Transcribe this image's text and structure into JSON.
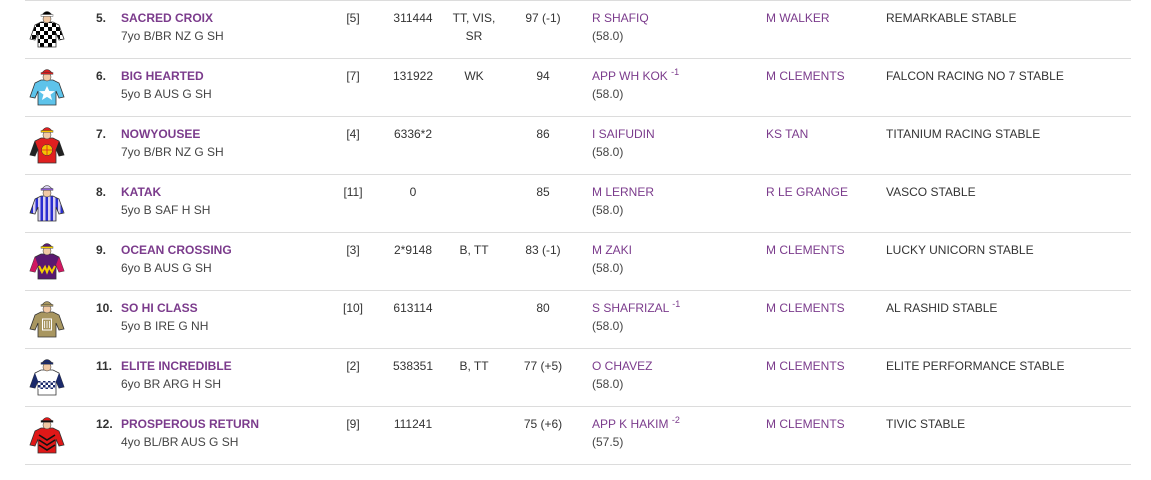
{
  "colors": {
    "link": "#7b3b8c",
    "text": "#333333",
    "divider": "#dcdcdc"
  },
  "runners": [
    {
      "number": "5.",
      "name": "SACRED CROIX",
      "desc": "7yo B/BR NZ G SH",
      "barrier": "[5]",
      "form": "311444",
      "gear": "TT, VIS, SR",
      "rating": "97 (-1)",
      "jockey": "R SHAFIQ",
      "claim": "",
      "weight": "(58.0)",
      "trainer": "M WALKER",
      "owner": "REMARKABLE STABLE",
      "silk": "silk-checkered-black-white-icon"
    },
    {
      "number": "6.",
      "name": "BIG HEARTED",
      "desc": "5yo B AUS G SH",
      "barrier": "[7]",
      "form": "131922",
      "gear": "WK",
      "rating": "94",
      "jockey": "APP WH KOK",
      "claim": "-1",
      "weight": "(58.0)",
      "trainer": "M CLEMENTS",
      "owner": "FALCON RACING NO 7 STABLE",
      "silk": "silk-lightblue-white-star-icon"
    },
    {
      "number": "7.",
      "name": "NOWYOUSEE",
      "desc": "7yo B/BR NZ G SH",
      "barrier": "[4]",
      "form": "6336*2",
      "gear": "",
      "rating": "86",
      "jockey": "I SAIFUDIN",
      "claim": "",
      "weight": "(58.0)",
      "trainer": "KS TAN",
      "owner": "TITANIUM RACING STABLE",
      "silk": "silk-red-globe-icon"
    },
    {
      "number": "8.",
      "name": "KATAK",
      "desc": "5yo B SAF H SH",
      "barrier": "[11]",
      "form": "0",
      "gear": "",
      "rating": "85",
      "jockey": "M LERNER",
      "claim": "",
      "weight": "(58.0)",
      "trainer": "R LE GRANGE",
      "owner": "VASCO STABLE",
      "silk": "silk-blue-purple-stripes-icon"
    },
    {
      "number": "9.",
      "name": "OCEAN CROSSING",
      "desc": "6yo B AUS G SH",
      "barrier": "[3]",
      "form": "2*9148",
      "gear": "B, TT",
      "rating": "83 (-1)",
      "jockey": "M ZAKI",
      "claim": "",
      "weight": "(58.0)",
      "trainer": "M CLEMENTS",
      "owner": "LUCKY UNICORN STABLE",
      "silk": "silk-purple-yellow-w-icon"
    },
    {
      "number": "10.",
      "name": "SO HI CLASS",
      "desc": "5yo B IRE G NH",
      "barrier": "[10]",
      "form": "613114",
      "gear": "",
      "rating": "80",
      "jockey": "S SHAFRIZAL",
      "claim": "-1",
      "weight": "(58.0)",
      "trainer": "M CLEMENTS",
      "owner": "AL RASHID STABLE",
      "silk": "silk-tan-emblem-icon"
    },
    {
      "number": "11.",
      "name": "ELITE INCREDIBLE",
      "desc": "6yo BR ARG H SH",
      "barrier": "[2]",
      "form": "538351",
      "gear": "B, TT",
      "rating": "77 (+5)",
      "jockey": "O CHAVEZ",
      "claim": "",
      "weight": "(58.0)",
      "trainer": "M CLEMENTS",
      "owner": "ELITE PERFORMANCE STABLE",
      "silk": "silk-white-navy-check-band-icon"
    },
    {
      "number": "12.",
      "name": "PROSPEROUS RETURN",
      "desc": "4yo BL/BR AUS G SH",
      "barrier": "[9]",
      "form": "111241",
      "gear": "",
      "rating": "75 (+6)",
      "jockey": "APP K HAKIM",
      "claim": "-2",
      "weight": "(57.5)",
      "trainer": "M CLEMENTS",
      "owner": "TIVIC STABLE",
      "silk": "silk-red-black-chevrons-icon"
    }
  ]
}
